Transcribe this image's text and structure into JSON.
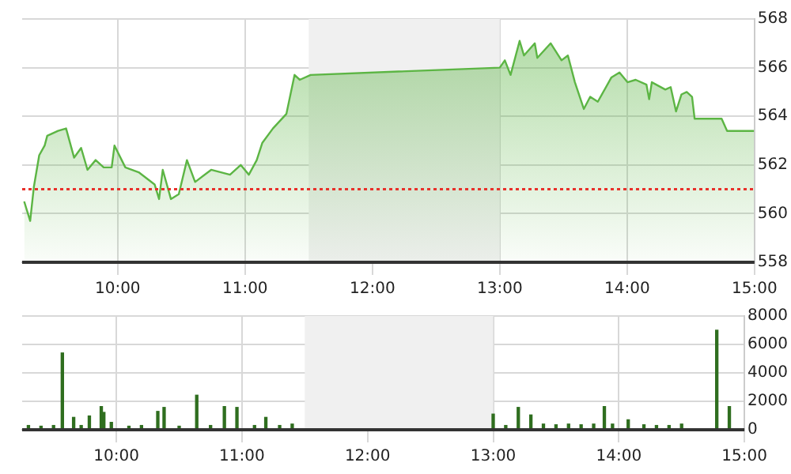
{
  "chart_data": [
    {
      "type": "area",
      "grid": true,
      "marker": "none",
      "xlim": [
        9.25,
        15
      ],
      "xticks": [
        {
          "value": 10,
          "label": "10:00"
        },
        {
          "value": 11,
          "label": "11:00"
        },
        {
          "value": 12,
          "label": "12:00"
        },
        {
          "value": 13,
          "label": "13:00"
        },
        {
          "value": 14,
          "label": "14:00"
        },
        {
          "value": 15,
          "label": "15:00"
        }
      ],
      "ylim": [
        558,
        568
      ],
      "yticks": [
        558,
        560,
        562,
        564,
        566,
        568
      ],
      "bands": [
        {
          "axis": "x",
          "from": 11.5,
          "to": 13,
          "color": "#f0f0f0"
        }
      ],
      "ref_lines": [
        {
          "axis": "y",
          "value": 561,
          "color": "#e8302a",
          "line_style": "dotted"
        }
      ],
      "series": [
        {
          "color": "#5cb544",
          "x": [
            9.266,
            9.313,
            9.342,
            9.384,
            9.427,
            9.447,
            9.532,
            9.595,
            9.658,
            9.713,
            9.763,
            9.827,
            9.89,
            9.953,
            9.975,
            10.06,
            10.165,
            10.29,
            10.325,
            10.354,
            10.418,
            10.48,
            10.544,
            10.608,
            10.734,
            10.882,
            10.966,
            11.03,
            11.092,
            11.135,
            11.219,
            11.325,
            11.389,
            11.43,
            11.515,
            13.0,
            13.04,
            13.085,
            13.156,
            13.19,
            13.275,
            13.295,
            13.4,
            13.485,
            13.535,
            13.59,
            13.66,
            13.71,
            13.77,
            13.877,
            13.94,
            14.003,
            14.067,
            14.152,
            14.173,
            14.194,
            14.3,
            14.342,
            14.384,
            14.427,
            14.468,
            14.51,
            14.53,
            14.742,
            14.785,
            14.996
          ],
          "values": [
            560.5,
            559.7,
            561.1,
            562.4,
            562.8,
            563.2,
            563.4,
            563.5,
            562.3,
            562.7,
            561.8,
            562.2,
            561.9,
            561.9,
            562.8,
            561.9,
            561.7,
            561.2,
            560.6,
            561.8,
            560.6,
            560.8,
            562.2,
            561.3,
            561.8,
            561.6,
            562.0,
            561.6,
            562.2,
            562.9,
            563.5,
            564.1,
            565.7,
            565.5,
            565.7,
            566.0,
            566.3,
            565.7,
            567.1,
            566.5,
            567.0,
            566.4,
            567.0,
            566.3,
            566.5,
            565.4,
            564.3,
            564.8,
            564.6,
            565.6,
            565.8,
            565.4,
            565.5,
            565.3,
            564.7,
            565.4,
            565.1,
            565.2,
            564.2,
            564.9,
            565.0,
            564.8,
            563.9,
            563.9,
            563.4,
            563.4
          ]
        }
      ]
    },
    {
      "type": "bar",
      "grid": true,
      "xlim": [
        9.25,
        15
      ],
      "xticks": [
        {
          "value": 10,
          "label": "10:00"
        },
        {
          "value": 11,
          "label": "11:00"
        },
        {
          "value": 12,
          "label": "12:00"
        },
        {
          "value": 13,
          "label": "13:00"
        },
        {
          "value": 14,
          "label": "14:00"
        },
        {
          "value": 15,
          "label": "15:00"
        }
      ],
      "ylim": [
        0,
        8000
      ],
      "yticks": [
        0,
        2000,
        4000,
        6000,
        8000
      ],
      "bands": [
        {
          "axis": "x",
          "from": 11.5,
          "to": 13,
          "color": "#f0f0f0"
        }
      ],
      "series": [
        {
          "color": "#2f6e1f",
          "x": [
            9.3,
            9.4,
            9.5,
            9.57,
            9.66,
            9.72,
            9.785,
            9.88,
            9.9,
            9.96,
            10.1,
            10.2,
            10.33,
            10.38,
            10.5,
            10.64,
            10.75,
            10.86,
            10.96,
            11.1,
            11.19,
            11.3,
            11.4,
            13.0,
            13.1,
            13.2,
            13.3,
            13.4,
            13.5,
            13.6,
            13.7,
            13.8,
            13.885,
            13.95,
            14.075,
            14.2,
            14.3,
            14.4,
            14.5,
            14.78,
            14.88
          ],
          "values": [
            300,
            250,
            300,
            5400,
            870,
            300,
            970,
            1630,
            1220,
            520,
            250,
            300,
            1290,
            1570,
            250,
            2430,
            300,
            1630,
            1570,
            300,
            870,
            300,
            400,
            1100,
            300,
            1570,
            1040,
            400,
            350,
            400,
            350,
            400,
            1630,
            400,
            700,
            350,
            300,
            300,
            400,
            7000,
            1630
          ]
        }
      ]
    }
  ]
}
